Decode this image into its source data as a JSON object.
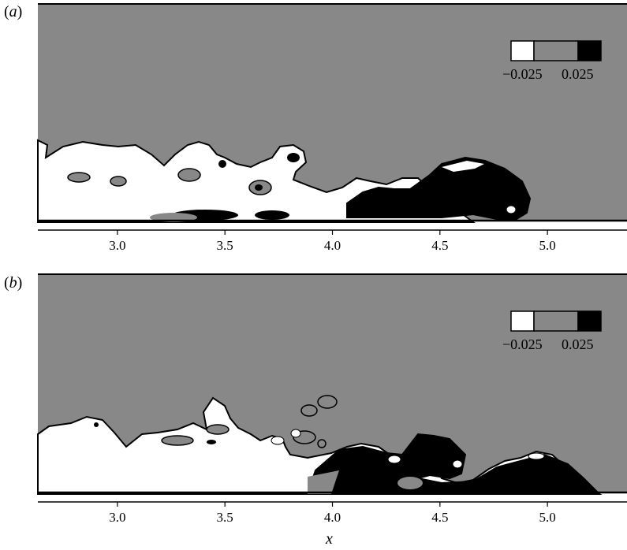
{
  "chart_data": [
    {
      "type": "heatmap",
      "panel_label": "a",
      "xlim": [
        2.63,
        5.37
      ],
      "x_ticks": [
        "3.0",
        "3.5",
        "4.0",
        "4.5",
        "5.0"
      ],
      "x_tick_values": [
        3.0,
        3.5,
        4.0,
        4.5,
        5.0
      ],
      "colorbar": {
        "levels": [
          "−0.025",
          "0.025"
        ],
        "colors": [
          "#ffffff",
          "#888888",
          "#000000"
        ]
      },
      "legend_position": "top-right"
    },
    {
      "type": "heatmap",
      "panel_label": "b",
      "xlim": [
        2.63,
        5.37
      ],
      "x_ticks": [
        "3.0",
        "3.5",
        "4.0",
        "4.5",
        "5.0"
      ],
      "x_tick_values": [
        3.0,
        3.5,
        4.0,
        4.5,
        5.0
      ],
      "colorbar": {
        "levels": [
          "−0.025",
          "0.025"
        ],
        "colors": [
          "#ffffff",
          "#888888",
          "#000000"
        ]
      },
      "legend_position": "top-right"
    }
  ],
  "xlabel": "x"
}
